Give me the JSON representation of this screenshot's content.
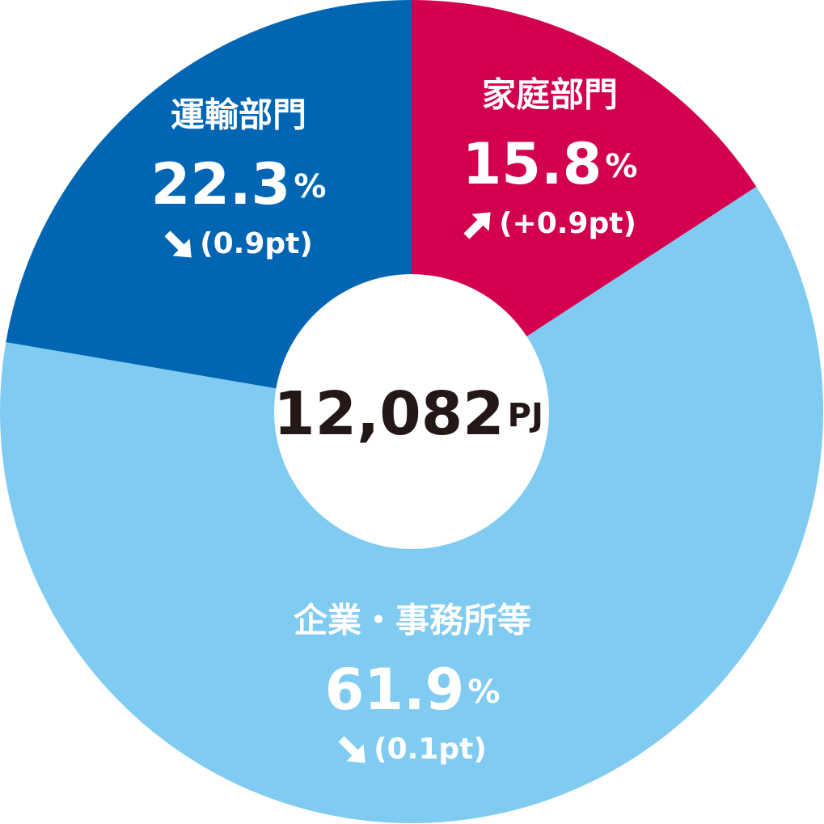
{
  "chart_data": {
    "type": "pie",
    "categories": [
      "家庭部門",
      "企業・事務所等",
      "運輸部門"
    ],
    "values": [
      15.8,
      61.9,
      22.3
    ],
    "value_unit": "%",
    "colors": [
      "#d2004f",
      "#80cbf1",
      "#0066b3"
    ],
    "changes": [
      "(+0.9pt)",
      "(0.1pt)",
      "(0.9pt)"
    ],
    "change_directions": [
      "up",
      "down",
      "down"
    ],
    "total": {
      "value": 12082,
      "label": "12,082"
    },
    "total_unit": "PJ"
  }
}
